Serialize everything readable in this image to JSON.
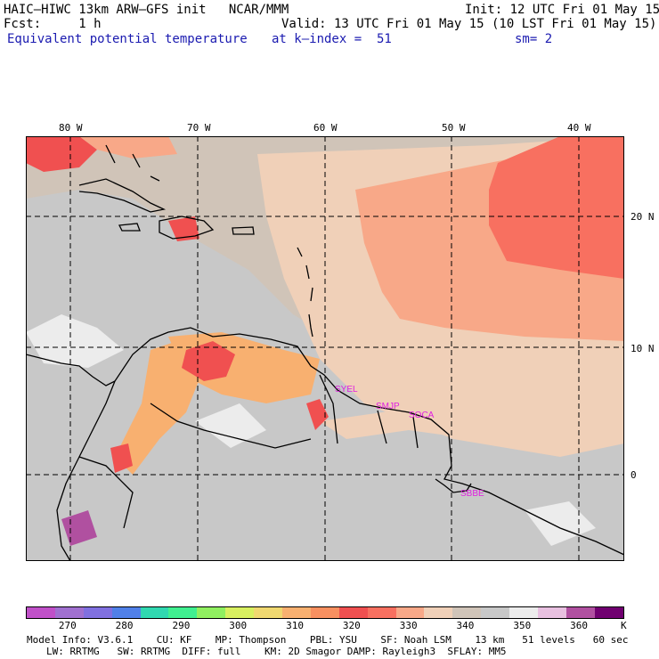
{
  "header": {
    "title": "HAIC–HIWC 13km ARW–GFS init   NCAR/MMM",
    "init": "Init: 12 UTC Fri 01 May 15",
    "fcst": "Fcst:     1 h",
    "valid": "Valid: 13 UTC Fri 01 May 15 (10 LST Fri 01 May 15)",
    "field": "Equivalent potential temperature",
    "kindex": "at k–index =  51",
    "sm": "sm= 2"
  },
  "map": {
    "lon_labels": [
      "80 W",
      "70 W",
      "60 W",
      "50 W",
      "40 W"
    ],
    "lat_labels": [
      "20 N",
      "10 N",
      "0"
    ],
    "stations": [
      "SYEL",
      "SMJP",
      "SOCA",
      "SBBE"
    ],
    "station_color": "#e020e0",
    "extent": {
      "lon": [
        -83.2,
        -35.4
      ],
      "lat": [
        -6.5,
        26.2
      ]
    },
    "gridlines": {
      "lon": [
        -80,
        -70,
        -60,
        -50,
        -40
      ],
      "lat": [
        20,
        10,
        0
      ]
    }
  },
  "colorbar": {
    "labels": [
      "270",
      "280",
      "290",
      "300",
      "310",
      "320",
      "330",
      "340",
      "350",
      "360"
    ],
    "unit": "K",
    "colors": [
      "#c050c8",
      "#a070d0",
      "#8070e0",
      "#5080e8",
      "#30d8b0",
      "#40f090",
      "#90f060",
      "#d8f060",
      "#f0d870",
      "#f8b070",
      "#f89060",
      "#f05050",
      "#f87060",
      "#f8a888",
      "#f0d0b8",
      "#d0c4b8",
      "#c8c8c8",
      "#ececec",
      "#e8c0e0",
      "#b050a0",
      "#700070"
    ]
  },
  "footer": {
    "line1": "Model Info: V3.6.1    CU: KF    MP: Thompson    PBL: YSU    SF: Noah LSM    13 km   51 levels   60 sec",
    "line2": "LW: RRTMG   SW: RRTMG  DIFF: full    KM: 2D Smagor DAMP: Rayleigh3  SFLAY: MM5"
  }
}
